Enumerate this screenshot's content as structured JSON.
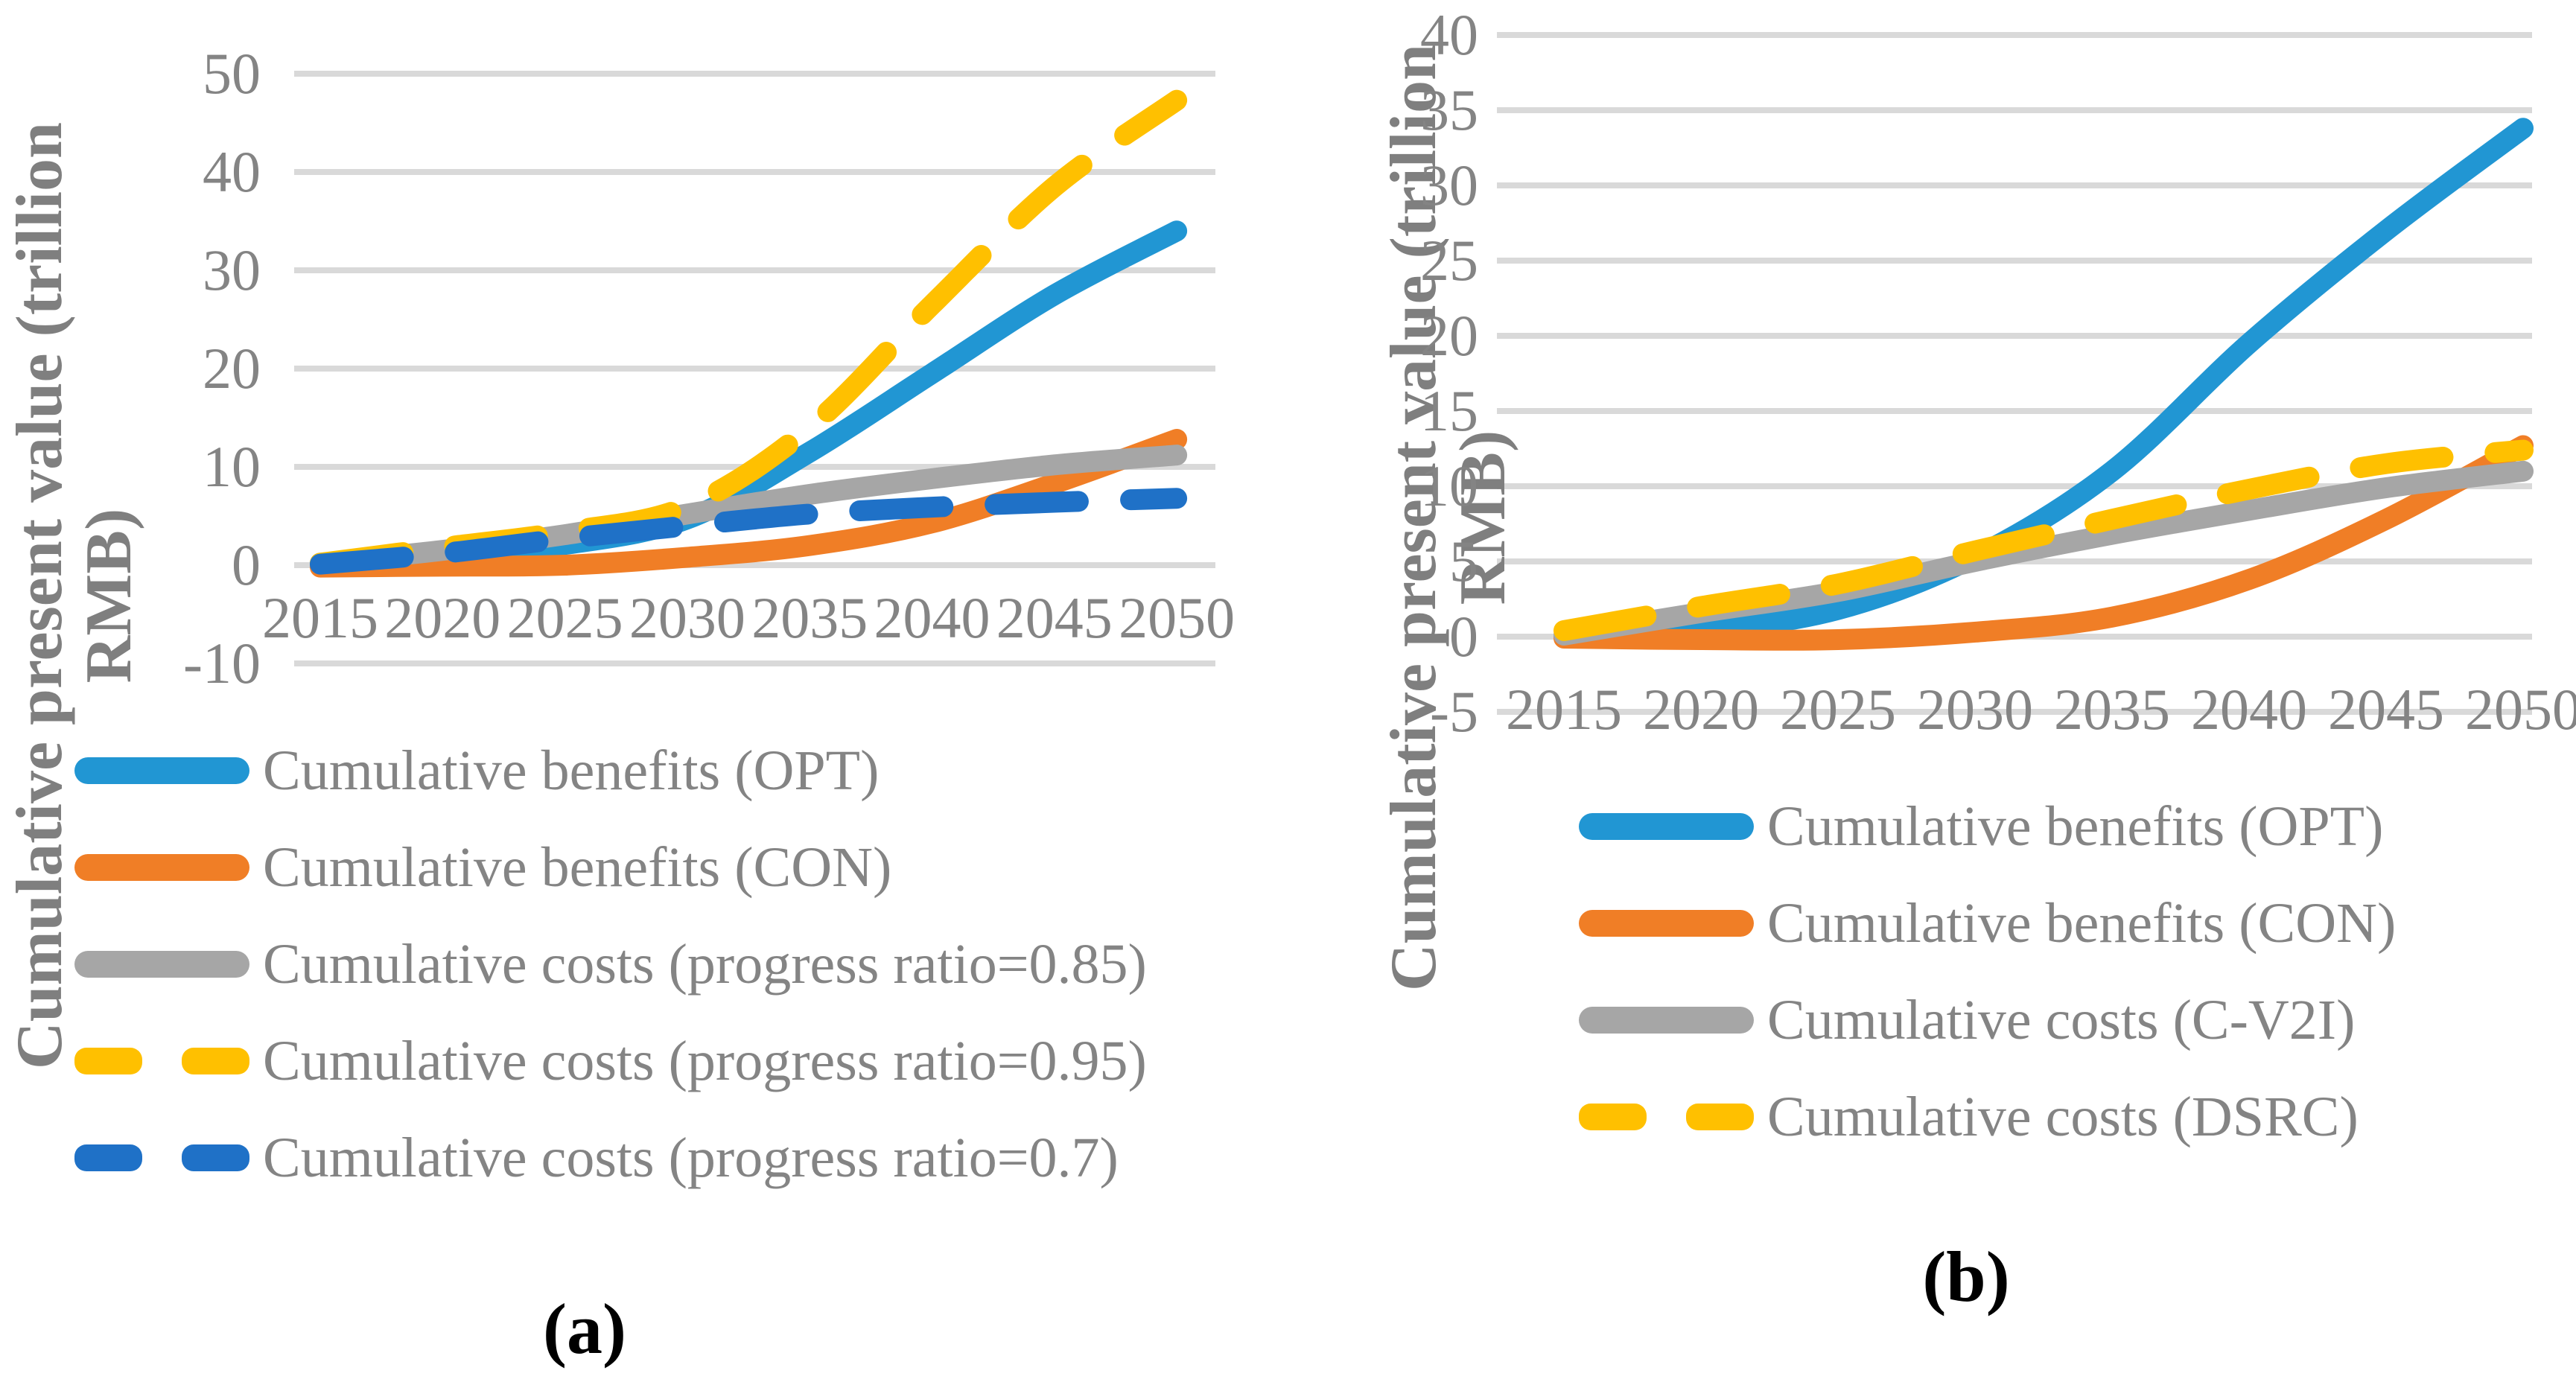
{
  "figure": {
    "caption_a": "(a)",
    "caption_b": "(b)"
  },
  "colors": {
    "gridline": "#d9d9d9",
    "tick_text": "#848484",
    "axis_title_text": "#7f7f7f",
    "caption_text": "#000000"
  },
  "chart_data": [
    {
      "id": "a",
      "type": "line",
      "title": "",
      "xlabel": "",
      "ylabel": "Cumulative present value (trillion RMB)",
      "ylabel_lines": [
        "Cumulative present value (trillion",
        "RMB)"
      ],
      "ylim": [
        -10,
        50
      ],
      "grid": true,
      "legend_position": "bottom-left",
      "y_ticks": [
        "50",
        "40",
        "30",
        "20",
        "10",
        "0",
        "-10"
      ],
      "categories": [
        "2015",
        "2020",
        "2025",
        "2030",
        "2035",
        "2040",
        "2045",
        "2050"
      ],
      "series": [
        {
          "name": "Cumulative benefits (OPT)",
          "color": "#2196d3",
          "dash": false,
          "values": [
            0,
            0.9,
            2.1,
            4.7,
            11.5,
            19.5,
            27.5,
            34
          ]
        },
        {
          "name": "Cumulative benefits (CON)",
          "color": "#f07e26",
          "dash": false,
          "values": [
            -0.2,
            -0.1,
            0,
            0.8,
            2,
            4.3,
            8.3,
            12.8
          ]
        },
        {
          "name": "Cumulative costs (progress ratio=0.85)",
          "color": "#a6a6a6",
          "dash": false,
          "values": [
            0.2,
            1.5,
            3.1,
            5.2,
            7.2,
            8.8,
            10.2,
            11.2
          ]
        },
        {
          "name": "Cumulative costs (progress ratio=0.95)",
          "color": "#ffc000",
          "dash": true,
          "values": [
            0.2,
            1.8,
            3.4,
            6,
            14,
            26.5,
            38.5,
            47.3
          ]
        },
        {
          "name": "Cumulative costs (progress ratio=0.7)",
          "color": "#1f71c7",
          "dash": true,
          "values": [
            0.1,
            1.2,
            2.7,
            4,
            5.2,
            5.9,
            6.4,
            6.8
          ]
        }
      ]
    },
    {
      "id": "b",
      "type": "line",
      "title": "",
      "xlabel": "",
      "ylabel": "Cumulative present value (trillion RMB)",
      "ylabel_lines": [
        "Cumulative present value (trillion RMB)"
      ],
      "ylim": [
        -5,
        40
      ],
      "grid": true,
      "legend_position": "bottom-center",
      "y_ticks": [
        "40",
        "35",
        "30",
        "25",
        "20",
        "15",
        "10",
        "5",
        "0",
        "-5"
      ],
      "categories": [
        "2015",
        "2020",
        "2025",
        "2030",
        "2035",
        "2040",
        "2045",
        "2050"
      ],
      "series": [
        {
          "name": "Cumulative benefits (OPT)",
          "color": "#2196d3",
          "dash": false,
          "values": [
            0,
            0.4,
            1.8,
            5.3,
            11,
            19.5,
            27,
            33.8
          ]
        },
        {
          "name": "Cumulative benefits (CON)",
          "color": "#f07e26",
          "dash": false,
          "values": [
            -0.1,
            -0.2,
            -0.2,
            0.3,
            1.3,
            3.8,
            7.8,
            12.7
          ]
        },
        {
          "name": "Cumulative costs (C-V2I)",
          "color": "#a6a6a6",
          "dash": false,
          "values": [
            0.1,
            1.6,
            3,
            5,
            6.8,
            8.4,
            9.9,
            11
          ]
        },
        {
          "name": "Cumulative costs (DSRC)",
          "color": "#ffc000",
          "dash": true,
          "values": [
            0.4,
            2,
            3.5,
            5.7,
            7.8,
            9.8,
            11.5,
            12.4
          ]
        }
      ]
    }
  ]
}
